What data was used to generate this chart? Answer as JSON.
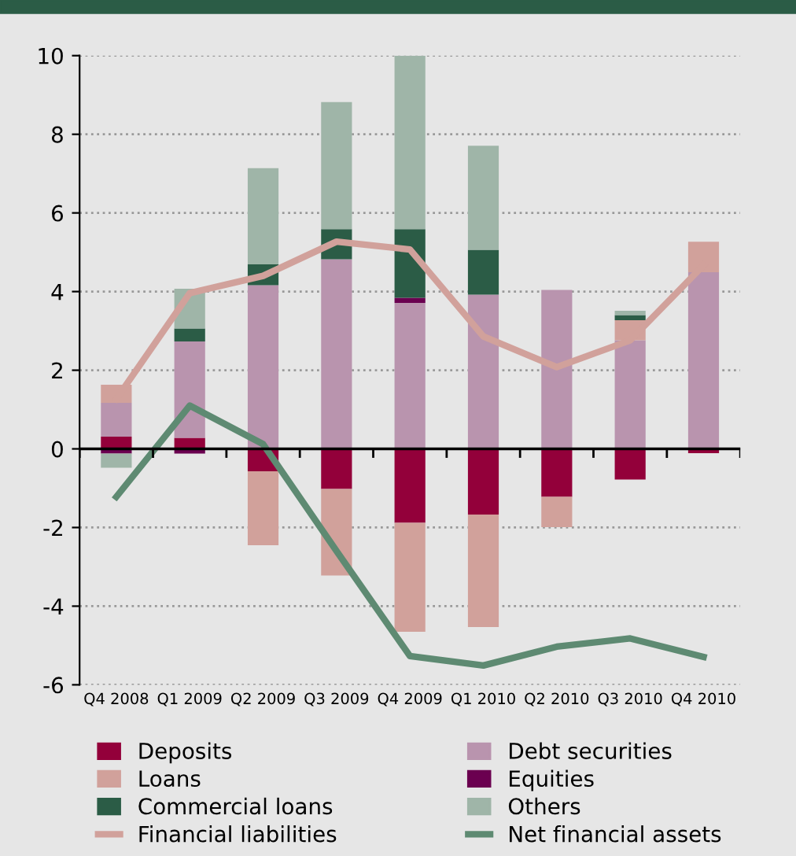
{
  "chart_data": {
    "type": "bar",
    "stacked": true,
    "categories": [
      "Q4 2008",
      "Q1 2009",
      "Q2 2009",
      "Q3 2009",
      "Q4 2009",
      "Q1 2010",
      "Q2 2010",
      "Q3 2010",
      "Q4 2010"
    ],
    "series": [
      {
        "name": "Deposits",
        "color": "#93003a",
        "values": [
          0.31,
          0.28,
          -0.57,
          -1.02,
          -1.88,
          -1.67,
          -1.22,
          -0.78,
          -0.11
        ]
      },
      {
        "name": "Debt securities",
        "color": "#b994ae",
        "values": [
          0.86,
          2.45,
          4.16,
          4.82,
          3.71,
          3.92,
          4.04,
          2.76,
          4.49
        ]
      },
      {
        "name": "Loans",
        "color": "#d1a19b",
        "values": [
          0.46,
          null,
          -1.88,
          -2.2,
          -2.77,
          -2.86,
          -0.77,
          0.51,
          0.78
        ]
      },
      {
        "name": "Equities",
        "color": "#6b0050",
        "values": [
          -0.12,
          -0.12,
          null,
          null,
          0.13,
          null,
          null,
          null,
          null
        ]
      },
      {
        "name": "Commercial loans",
        "color": "#2b5c46",
        "values": [
          null,
          0.33,
          0.53,
          0.77,
          1.75,
          1.14,
          null,
          0.13,
          null
        ]
      },
      {
        "name": "Others",
        "color": "#9fb5a8",
        "values": [
          -0.36,
          1.01,
          2.45,
          3.23,
          4.41,
          2.65,
          null,
          0.11,
          null
        ]
      },
      {
        "name": "Financial liabilities",
        "type": "line",
        "color": "#d1a19b",
        "values": [
          1.27,
          3.96,
          4.4,
          5.27,
          5.07,
          2.86,
          2.08,
          2.76,
          4.67
        ]
      },
      {
        "name": "Net financial assets",
        "type": "line",
        "color": "#5e8a72",
        "values": [
          -1.22,
          1.1,
          0.12,
          -2.6,
          -5.27,
          -5.51,
          -5.03,
          -4.82,
          -5.29
        ]
      }
    ],
    "ylim": [
      -6,
      10
    ],
    "yticks": [
      -6,
      -4,
      -2,
      0,
      2,
      4,
      6,
      8,
      10
    ],
    "grid": "y",
    "legend": "bottom",
    "marker": "none",
    "line_style": "solid"
  }
}
